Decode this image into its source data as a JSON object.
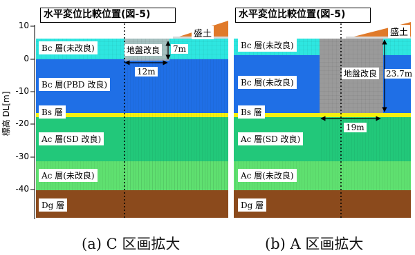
{
  "panel_a": {
    "title": "水平変位比較位置(図-5)",
    "y_axis_label": "標高 DL[m]",
    "y_ticks": [
      "10",
      "0",
      "-10",
      "-20",
      "-30",
      "-40"
    ],
    "layers": [
      {
        "label": "Bc 層(未改良)",
        "color": "#2ee6e0"
      },
      {
        "label": "Bc 層(PBD 改良)",
        "color": "#1f6fe6"
      },
      {
        "label": "Bs 層",
        "color": "#f5f010"
      },
      {
        "label": "Ac 層(SD 改良)",
        "color": "#22c87a"
      },
      {
        "label": "Ac 層(未改良)",
        "color": "#5fe070"
      },
      {
        "label": "Dg 層",
        "color": "#8b4a1c"
      }
    ],
    "embankment_label": "盛土",
    "improvement_label": "地盤改良",
    "depth_dim": "7m",
    "width_dim": "12m",
    "caption": "(a) C 区画拡大"
  },
  "panel_b": {
    "title": "水平変位比較位置(図-5)",
    "layers": [
      {
        "label": "Bc 層(未改良)"
      },
      {
        "label": "Bc 層(未改良)"
      },
      {
        "label": "Bs 層"
      },
      {
        "label": "Ac 層(SD 改良)"
      },
      {
        "label": "Ac 層(未改良)"
      },
      {
        "label": "Dg 層"
      }
    ],
    "embankment_label": "盛土",
    "improvement_label": "地盤改良",
    "depth_dim": "23.7m",
    "width_dim": "19m",
    "caption": "(b) A 区画拡大"
  },
  "colors": {
    "bc_unimproved": "#2ee6e0",
    "bc_pbd": "#1f6fe6",
    "bs": "#f5f010",
    "ac_sd": "#22c87a",
    "ac_unimproved": "#5fe070",
    "dg": "#8b4a1c",
    "embankment": "#e07a2a",
    "improvement_gray": "#9a9a9a"
  }
}
